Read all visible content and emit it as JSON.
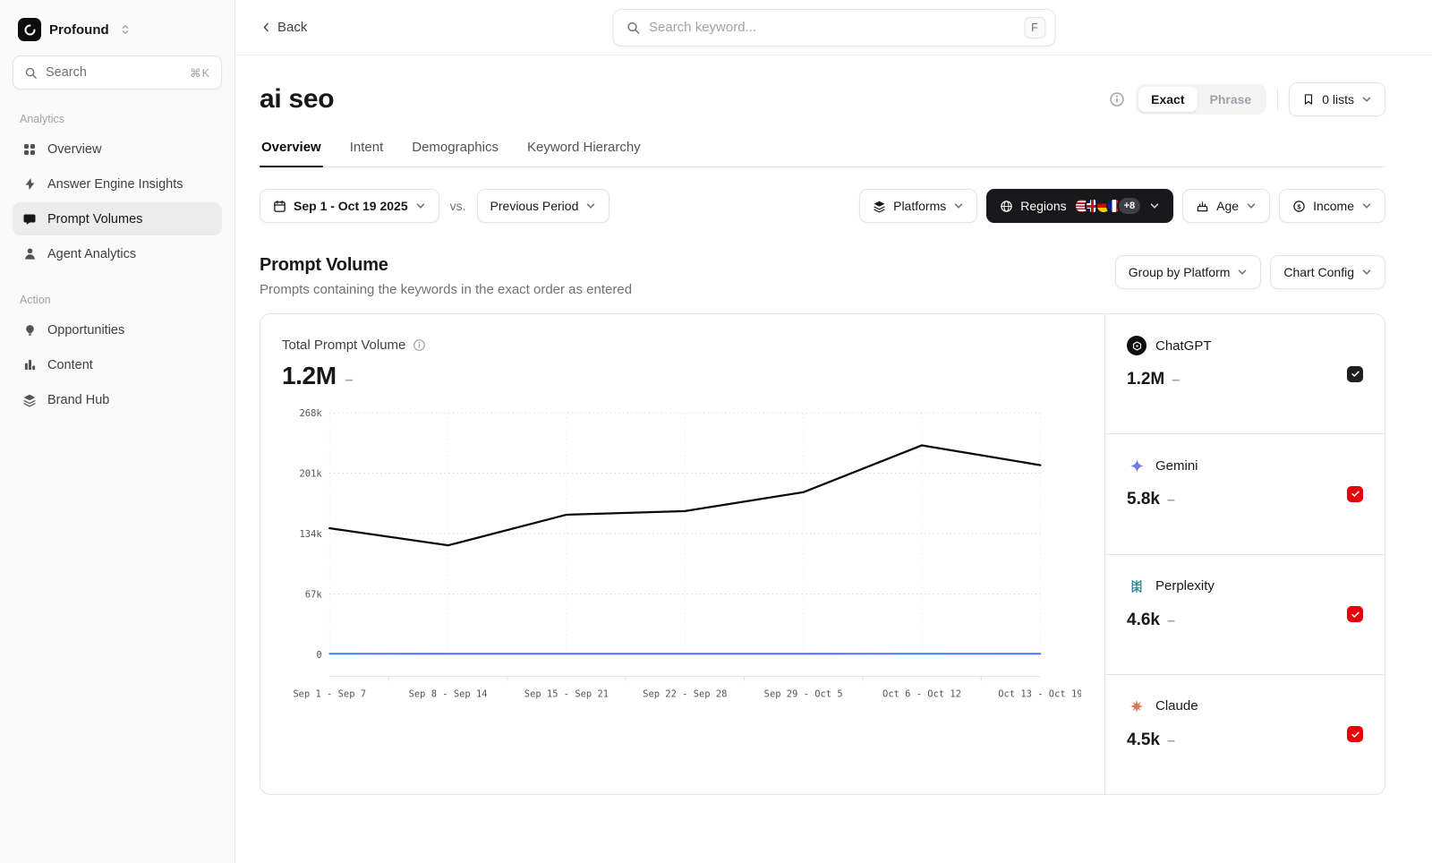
{
  "app": {
    "name": "Profound"
  },
  "topbar": {
    "back_label": "Back",
    "search_placeholder": "Search keyword...",
    "search_shortcut": "F"
  },
  "sidebar": {
    "search_label": "Search",
    "search_shortcut": "⌘K",
    "sections": [
      {
        "label": "Analytics",
        "items": [
          {
            "label": "Overview",
            "icon": "grid-icon",
            "active": false
          },
          {
            "label": "Answer Engine Insights",
            "icon": "lightning-icon",
            "active": false
          },
          {
            "label": "Prompt Volumes",
            "icon": "chat-bubble-icon",
            "active": true
          },
          {
            "label": "Agent Analytics",
            "icon": "person-icon",
            "active": false
          }
        ]
      },
      {
        "label": "Action",
        "items": [
          {
            "label": "Opportunities",
            "icon": "lightbulb-icon",
            "active": false
          },
          {
            "label": "Content",
            "icon": "columns-icon",
            "active": false
          },
          {
            "label": "Brand Hub",
            "icon": "layers-icon",
            "active": false
          }
        ]
      }
    ]
  },
  "header": {
    "title": "ai seo",
    "match_options": {
      "exact": "Exact",
      "phrase": "Phrase",
      "selected": "Exact"
    },
    "lists_button": "0 lists"
  },
  "tabs": [
    {
      "label": "Overview",
      "active": true
    },
    {
      "label": "Intent",
      "active": false
    },
    {
      "label": "Demographics",
      "active": false
    },
    {
      "label": "Keyword Hierarchy",
      "active": false
    }
  ],
  "filters": {
    "date_range": "Sep 1 - Oct 19 2025",
    "vs_label": "vs.",
    "compare": "Previous Period",
    "platforms": "Platforms",
    "regions": {
      "label": "Regions",
      "flags": [
        "us",
        "gb",
        "de",
        "fr"
      ],
      "more": "+8"
    },
    "age": "Age",
    "income": "Income"
  },
  "section": {
    "title": "Prompt Volume",
    "subtitle": "Prompts containing the keywords in the exact order as entered",
    "group_by": "Group by Platform",
    "chart_config": "Chart Config"
  },
  "chart": {
    "title": "Total Prompt Volume",
    "total": "1.2M",
    "trend": "–"
  },
  "legend": [
    {
      "name": "ChatGPT",
      "value": "1.2M",
      "trend": "–",
      "color": "#0a0a0a",
      "checkbox_color": "#1f1f1f",
      "checked": true
    },
    {
      "name": "Gemini",
      "value": "5.8k",
      "trend": "–",
      "color": "#3e68ff",
      "checkbox_color": "#e7000b",
      "checked": true
    },
    {
      "name": "Perplexity",
      "value": "4.6k",
      "trend": "–",
      "color": "#20b8cd",
      "checkbox_color": "#e7000b",
      "checked": true
    },
    {
      "name": "Claude",
      "value": "4.5k",
      "trend": "–",
      "color": "#e2543e",
      "checkbox_color": "#e7000b",
      "checked": true
    }
  ],
  "chart_data": {
    "type": "line",
    "title": "Total Prompt Volume",
    "x": [
      "Sep 1 - Sep 7",
      "Sep 8 - Sep 14",
      "Sep 15 - Sep 21",
      "Sep 22 - Sep 28",
      "Sep 29 - Oct 5",
      "Oct 6 - Oct 12",
      "Oct 13 - Oct 19"
    ],
    "y_ticks": [
      "268k",
      "201k",
      "134k",
      "67k",
      "0"
    ],
    "ylim": [
      0,
      268000
    ],
    "grid": "dotted-horizontal-and-vertical",
    "legend_position": "right-panel",
    "series": [
      {
        "name": "ChatGPT",
        "color": "#0a0a0a",
        "values": [
          140000,
          121000,
          155000,
          159000,
          180000,
          232000,
          210000
        ]
      },
      {
        "name": "Gemini",
        "color": "#3e68ff",
        "values": [
          900,
          800,
          800,
          800,
          800,
          900,
          800
        ]
      },
      {
        "name": "Perplexity",
        "color": "#20b8cd",
        "values": [
          700,
          600,
          650,
          650,
          650,
          700,
          650
        ]
      },
      {
        "name": "Claude",
        "color": "#e2543e",
        "values": [
          650,
          600,
          650,
          650,
          650,
          650,
          650
        ]
      }
    ]
  }
}
